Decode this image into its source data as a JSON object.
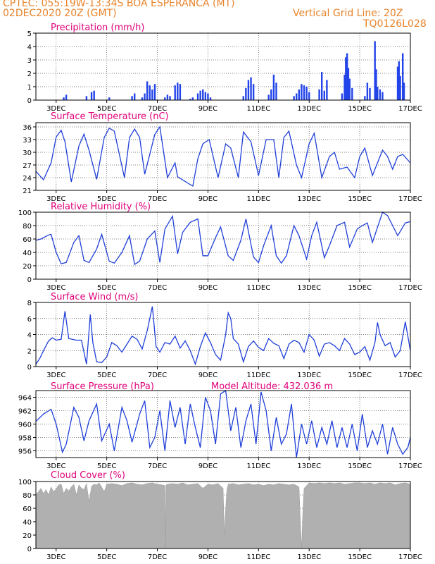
{
  "header": {
    "station": "CPTEC:   055:19W-13:34S   BOA ESPERANCA (MT)",
    "date": "02DEC2020 20Z (GMT)",
    "grid_note": "Vertical Grid Line: 20Z",
    "code": "TQ0126L028"
  },
  "colors": {
    "title": "#e0007a",
    "header": "#e8832a",
    "line": "#1f3fd8",
    "bar": "#2344e8",
    "cloud": "#b0b0b0"
  },
  "x_labels": [
    "3DEC",
    "5DEC",
    "7DEC",
    "9DEC",
    "11DEC",
    "13DEC",
    "15DEC",
    "17DEC"
  ],
  "chart_data": [
    {
      "type": "bar",
      "title": "Precipitation (mm/h)",
      "ylim": [
        0,
        5
      ],
      "yticks": [
        "0",
        "1",
        "2",
        "3",
        "4",
        "5"
      ],
      "x_unit": "day of December 2020",
      "points": [
        [
          3.3,
          0.2
        ],
        [
          3.4,
          0.4
        ],
        [
          4.2,
          0.3
        ],
        [
          4.4,
          0.6
        ],
        [
          4.5,
          0.7
        ],
        [
          5.1,
          0.2
        ],
        [
          6.0,
          0.3
        ],
        [
          6.1,
          0.5
        ],
        [
          6.4,
          0.2
        ],
        [
          6.5,
          0.5
        ],
        [
          6.6,
          1.4
        ],
        [
          6.7,
          1.1
        ],
        [
          6.8,
          0.8
        ],
        [
          6.9,
          1.2
        ],
        [
          7.3,
          0.2
        ],
        [
          7.4,
          0.4
        ],
        [
          7.5,
          0.3
        ],
        [
          7.7,
          1.1
        ],
        [
          7.8,
          1.3
        ],
        [
          7.9,
          1.2
        ],
        [
          8.3,
          0.1
        ],
        [
          8.4,
          0.2
        ],
        [
          8.6,
          0.5
        ],
        [
          8.7,
          0.7
        ],
        [
          8.8,
          0.8
        ],
        [
          8.9,
          0.6
        ],
        [
          9.0,
          0.5
        ],
        [
          9.1,
          0.2
        ],
        [
          10.4,
          0.3
        ],
        [
          10.5,
          0.9
        ],
        [
          10.6,
          1.5
        ],
        [
          10.7,
          1.7
        ],
        [
          10.8,
          1.2
        ],
        [
          11.4,
          0.4
        ],
        [
          11.5,
          0.8
        ],
        [
          11.6,
          1.9
        ],
        [
          11.7,
          1.3
        ],
        [
          12.4,
          0.3
        ],
        [
          12.5,
          0.5
        ],
        [
          12.6,
          0.8
        ],
        [
          12.7,
          1.2
        ],
        [
          12.8,
          1.1
        ],
        [
          12.9,
          1.0
        ],
        [
          13.0,
          0.6
        ],
        [
          13.4,
          0.8
        ],
        [
          13.5,
          2.1
        ],
        [
          13.6,
          0.7
        ],
        [
          13.7,
          1.5
        ],
        [
          14.3,
          0.5
        ],
        [
          14.4,
          1.9
        ],
        [
          14.45,
          3.2
        ],
        [
          14.5,
          3.5
        ],
        [
          14.55,
          2.4
        ],
        [
          14.6,
          1.6
        ],
        [
          14.7,
          0.9
        ],
        [
          15.2,
          0.3
        ],
        [
          15.3,
          1.3
        ],
        [
          15.4,
          0.9
        ],
        [
          15.6,
          4.4
        ],
        [
          15.65,
          2.3
        ],
        [
          15.7,
          1.0
        ],
        [
          15.8,
          0.8
        ],
        [
          15.9,
          0.6
        ],
        [
          16.5,
          2.5
        ],
        [
          16.55,
          2.9
        ],
        [
          16.6,
          1.8
        ],
        [
          16.7,
          3.5
        ],
        [
          16.75,
          1.3
        ]
      ]
    },
    {
      "type": "line",
      "title": "Surface Temperature (nC)",
      "ylim": [
        21,
        37
      ],
      "yticks": [
        "21",
        "24",
        "27",
        "30",
        "33",
        "36"
      ],
      "x": [
        2.2,
        2.5,
        2.8,
        3.0,
        3.2,
        3.35,
        3.6,
        3.9,
        4.1,
        4.3,
        4.6,
        4.9,
        5.1,
        5.3,
        5.7,
        5.9,
        6.1,
        6.3,
        6.5,
        6.9,
        7.1,
        7.4,
        7.7,
        7.8,
        8.4,
        8.6,
        8.8,
        9.05,
        9.4,
        9.7,
        9.9,
        10.2,
        10.4,
        10.7,
        11.0,
        11.3,
        11.6,
        11.8,
        12.0,
        12.2,
        12.5,
        12.7,
        13.0,
        13.2,
        13.5,
        13.8,
        14.0,
        14.2,
        14.5,
        14.8,
        15.0,
        15.2,
        15.5,
        15.9,
        16.1,
        16.3,
        16.5,
        16.7,
        17.0
      ],
      "y": [
        25.5,
        23.5,
        27.5,
        33.6,
        35.2,
        32.5,
        23.0,
        31.5,
        34.3,
        30.5,
        23.6,
        33.5,
        35.7,
        35.0,
        24.0,
        33.5,
        35.5,
        33.5,
        24.8,
        34.2,
        36.0,
        24.0,
        27.5,
        24.2,
        22.0,
        28.5,
        32.0,
        33.0,
        24.0,
        32.0,
        31.0,
        24.0,
        34.8,
        32.5,
        24.5,
        33.0,
        33.0,
        24.0,
        33.5,
        35.0,
        27.0,
        24.0,
        32.0,
        34.5,
        24.0,
        29.0,
        30.0,
        26.0,
        26.5,
        24.0,
        29.0,
        31.0,
        24.5,
        30.5,
        29.0,
        26.0,
        29.0,
        29.5,
        27.5
      ]
    },
    {
      "type": "line",
      "title": "Relative Humidity (%)",
      "ylim": [
        0,
        100
      ],
      "yticks": [
        "0",
        "20",
        "40",
        "60",
        "80",
        "100"
      ],
      "x": [
        2.2,
        2.4,
        2.7,
        2.8,
        3.0,
        3.2,
        3.4,
        3.7,
        3.9,
        4.1,
        4.3,
        4.6,
        4.8,
        5.1,
        5.3,
        5.6,
        5.9,
        6.1,
        6.3,
        6.6,
        6.9,
        7.1,
        7.3,
        7.6,
        7.8,
        8.0,
        8.3,
        8.6,
        8.8,
        9.0,
        9.3,
        9.5,
        9.8,
        10.0,
        10.3,
        10.5,
        10.8,
        11.0,
        11.2,
        11.5,
        11.7,
        11.9,
        12.1,
        12.4,
        12.6,
        12.9,
        13.1,
        13.3,
        13.6,
        13.8,
        14.1,
        14.4,
        14.6,
        14.9,
        15.1,
        15.3,
        15.5,
        15.9,
        16.1,
        16.3,
        16.5,
        16.8,
        17.0
      ],
      "y": [
        58,
        60,
        66,
        67,
        40,
        23,
        25,
        55,
        65,
        28,
        25,
        45,
        67,
        27,
        24,
        40,
        65,
        22,
        27,
        60,
        72,
        25,
        75,
        94,
        38,
        70,
        85,
        90,
        35,
        35,
        62,
        78,
        35,
        28,
        58,
        90,
        33,
        25,
        50,
        80,
        35,
        24,
        35,
        80,
        65,
        30,
        65,
        85,
        32,
        50,
        80,
        85,
        48,
        75,
        80,
        84,
        55,
        100,
        95,
        80,
        65,
        84,
        86
      ]
    },
    {
      "type": "line",
      "title": "Surface Wind (m/s)",
      "ylim": [
        0,
        8
      ],
      "yticks": [
        "0",
        "2",
        "4",
        "6",
        "8"
      ],
      "x": [
        2.2,
        2.35,
        2.5,
        2.7,
        2.85,
        3.0,
        3.2,
        3.35,
        3.5,
        3.8,
        4.0,
        4.2,
        4.35,
        4.45,
        4.6,
        4.8,
        5.0,
        5.2,
        5.4,
        5.6,
        5.8,
        6.0,
        6.2,
        6.4,
        6.6,
        6.8,
        6.85,
        6.95,
        7.1,
        7.3,
        7.5,
        7.7,
        7.9,
        8.1,
        8.3,
        8.5,
        8.7,
        8.9,
        9.1,
        9.3,
        9.5,
        9.7,
        9.8,
        9.9,
        10.0,
        10.2,
        10.4,
        10.6,
        10.8,
        11.0,
        11.2,
        11.4,
        11.6,
        11.8,
        12.0,
        12.2,
        12.4,
        12.6,
        12.8,
        13.0,
        13.2,
        13.4,
        13.6,
        13.8,
        14.0,
        14.2,
        14.4,
        14.6,
        14.8,
        15.0,
        15.2,
        15.4,
        15.6,
        15.7,
        15.8,
        16.0,
        16.2,
        16.4,
        16.6,
        16.8,
        17.0
      ],
      "y": [
        0.3,
        1.0,
        2.0,
        3.2,
        3.6,
        3.3,
        3.4,
        6.9,
        3.5,
        3.3,
        3.3,
        0.3,
        6.5,
        3.0,
        0.6,
        0.5,
        1.2,
        3.0,
        2.6,
        1.8,
        2.8,
        3.8,
        3.4,
        2.2,
        4.5,
        7.5,
        6.0,
        2.5,
        1.8,
        3.0,
        2.8,
        3.8,
        2.3,
        3.2,
        2.0,
        0.3,
        2.5,
        4.2,
        3.0,
        1.5,
        0.8,
        4.0,
        6.7,
        6.0,
        3.5,
        2.8,
        0.6,
        2.5,
        3.2,
        2.4,
        2.0,
        3.5,
        2.9,
        2.6,
        1.0,
        2.8,
        3.3,
        3.0,
        1.8,
        4.0,
        3.3,
        1.3,
        2.8,
        3.0,
        2.6,
        2.0,
        3.5,
        2.8,
        1.5,
        1.8,
        2.5,
        0.8,
        3.0,
        5.5,
        4.0,
        2.6,
        3.0,
        1.2,
        2.0,
        5.6,
        2.0
      ]
    },
    {
      "type": "line",
      "title": "Surface Pressure (hPa)",
      "annotation": "Model Altitude: 432.036 m",
      "ylim": [
        955,
        965
      ],
      "yticks": [
        "956",
        "958",
        "960",
        "962",
        "964"
      ],
      "x": [
        2.2,
        2.5,
        2.8,
        3.0,
        3.25,
        3.4,
        3.7,
        3.9,
        4.1,
        4.3,
        4.6,
        4.8,
        5.1,
        5.3,
        5.6,
        5.8,
        6.0,
        6.3,
        6.5,
        6.7,
        6.9,
        7.1,
        7.3,
        7.5,
        7.7,
        7.9,
        8.1,
        8.3,
        8.5,
        8.7,
        8.9,
        9.1,
        9.3,
        9.5,
        9.7,
        9.9,
        10.1,
        10.3,
        10.5,
        10.7,
        10.9,
        11.1,
        11.3,
        11.5,
        11.7,
        11.9,
        12.1,
        12.3,
        12.5,
        12.7,
        12.9,
        13.1,
        13.3,
        13.5,
        13.7,
        13.9,
        14.1,
        14.3,
        14.5,
        14.7,
        14.9,
        15.1,
        15.3,
        15.5,
        15.7,
        15.9,
        16.1,
        16.3,
        16.5,
        16.7,
        16.9,
        17.0
      ],
      "y": [
        960.4,
        961.5,
        962.2,
        960.0,
        955.8,
        957.0,
        962.5,
        961.0,
        957.5,
        960.5,
        963.0,
        957.5,
        960.0,
        956.0,
        962.5,
        960.5,
        957.3,
        961.5,
        963.5,
        956.5,
        958.0,
        962.0,
        956.0,
        963.5,
        959.5,
        962.5,
        957.0,
        963.0,
        959.5,
        956.5,
        964.0,
        962.0,
        957.0,
        964.5,
        965.0,
        959.0,
        962.5,
        956.5,
        960.5,
        963.0,
        957.0,
        964.8,
        962.0,
        956.0,
        961.0,
        957.0,
        958.5,
        963.0,
        955.0,
        960.0,
        957.0,
        960.5,
        956.5,
        959.5,
        957.0,
        960.5,
        956.5,
        959.5,
        956.5,
        960.0,
        956.0,
        961.5,
        956.5,
        959.0,
        957.0,
        960.0,
        955.5,
        959.5,
        957.0,
        955.5,
        956.5,
        958.0
      ]
    },
    {
      "type": "area",
      "title": "Cloud Cover (%)",
      "ylim": [
        0,
        100
      ],
      "yticks": [
        "0",
        "20",
        "40",
        "60",
        "80",
        "100"
      ],
      "x": [
        2.2,
        2.3,
        2.4,
        2.5,
        2.6,
        2.7,
        2.8,
        2.9,
        3.0,
        3.1,
        3.2,
        3.3,
        3.4,
        3.5,
        3.6,
        3.7,
        3.8,
        3.9,
        4.0,
        4.1,
        4.2,
        4.3,
        4.4,
        4.5,
        4.6,
        4.7,
        4.8,
        4.9,
        5.0,
        5.2,
        5.4,
        5.6,
        5.8,
        6.0,
        6.2,
        6.4,
        6.6,
        6.8,
        7.0,
        7.2,
        7.3,
        7.32,
        7.34,
        7.4,
        7.6,
        7.8,
        8.0,
        8.2,
        8.4,
        8.6,
        8.8,
        9.0,
        9.2,
        9.4,
        9.6,
        9.65,
        9.7,
        9.75,
        9.8,
        10.0,
        10.2,
        10.4,
        10.6,
        10.8,
        11.0,
        11.2,
        11.4,
        11.6,
        11.8,
        12.0,
        12.2,
        12.4,
        12.6,
        12.65,
        12.7,
        12.75,
        12.8,
        13.0,
        13.2,
        13.4,
        13.6,
        13.8,
        14.0,
        14.2,
        14.4,
        14.6,
        14.8,
        15.0,
        15.2,
        15.4,
        15.6,
        15.8,
        16.0,
        16.2,
        16.4,
        16.6,
        16.8,
        17.0
      ],
      "y": [
        80,
        85,
        90,
        82,
        88,
        80,
        92,
        85,
        89,
        95,
        96,
        82,
        90,
        86,
        92,
        96,
        80,
        95,
        90,
        88,
        97,
        70,
        93,
        96,
        95,
        98,
        92,
        85,
        96,
        97,
        96,
        94,
        97,
        98,
        96,
        95,
        97,
        98,
        96,
        95,
        94,
        0,
        95,
        96,
        97,
        96,
        98,
        95,
        96,
        97,
        90,
        96,
        95,
        97,
        90,
        20,
        60,
        88,
        96,
        97,
        95,
        96,
        97,
        95,
        96,
        94,
        96,
        95,
        97,
        96,
        95,
        96,
        92,
        45,
        0,
        55,
        90,
        98,
        97,
        98,
        97,
        98,
        97,
        98,
        96,
        97,
        98,
        98,
        97,
        98,
        96,
        98,
        97,
        98,
        95,
        97,
        98,
        96
      ]
    }
  ]
}
